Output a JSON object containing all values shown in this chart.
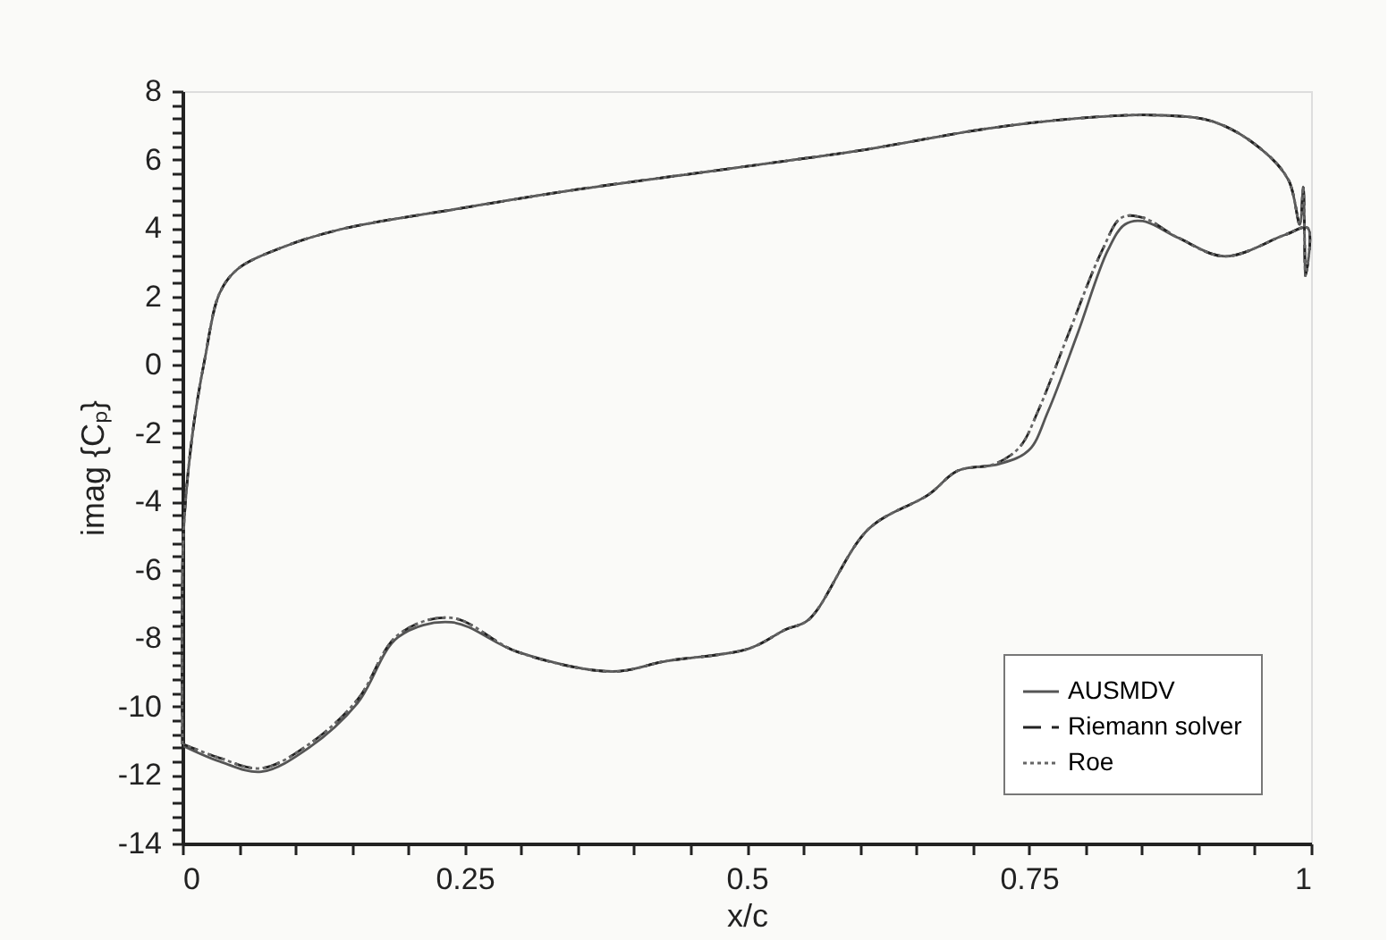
{
  "chart_data": {
    "type": "line",
    "xlabel": "x/c",
    "ylabel": "imag {Cₚ}",
    "xlim": [
      0,
      1
    ],
    "ylim": [
      -14,
      8
    ],
    "xticks": [
      0,
      {
        "value": 0.05,
        "label": null
      },
      {
        "value": 0.1,
        "label": null
      },
      {
        "value": 0.15,
        "label": null
      },
      {
        "value": 0.2,
        "label": null
      },
      0.25,
      {
        "value": 0.3,
        "label": null
      },
      {
        "value": 0.35,
        "label": null
      },
      {
        "value": 0.4,
        "label": null
      },
      {
        "value": 0.45,
        "label": null
      },
      0.5,
      {
        "value": 0.55,
        "label": null
      },
      {
        "value": 0.6,
        "label": null
      },
      {
        "value": 0.65,
        "label": null
      },
      {
        "value": 0.7,
        "label": null
      },
      0.75,
      {
        "value": 0.8,
        "label": null
      },
      {
        "value": 0.85,
        "label": null
      },
      {
        "value": 0.9,
        "label": null
      },
      {
        "value": 0.95,
        "label": null
      },
      1
    ],
    "yticks": [
      -14,
      {
        "value": -13.6,
        "label": null
      },
      {
        "value": -13.2,
        "label": null
      },
      {
        "value": -12.8,
        "label": null
      },
      {
        "value": -12.4,
        "label": null
      },
      -12,
      {
        "value": -11.6,
        "label": null
      },
      {
        "value": -11.2,
        "label": null
      },
      {
        "value": -10.8,
        "label": null
      },
      {
        "value": -10.4,
        "label": null
      },
      -10,
      {
        "value": -9.6,
        "label": null
      },
      {
        "value": -9.2,
        "label": null
      },
      {
        "value": -8.8,
        "label": null
      },
      {
        "value": -8.4,
        "label": null
      },
      -8,
      {
        "value": -7.6,
        "label": null
      },
      {
        "value": -7.2,
        "label": null
      },
      {
        "value": -6.8,
        "label": null
      },
      {
        "value": -6.4,
        "label": null
      },
      -6,
      {
        "value": -5.6,
        "label": null
      },
      {
        "value": -5.2,
        "label": null
      },
      {
        "value": -4.8,
        "label": null
      },
      {
        "value": -4.4,
        "label": null
      },
      -4,
      {
        "value": -3.6,
        "label": null
      },
      {
        "value": -3.2,
        "label": null
      },
      {
        "value": -2.8,
        "label": null
      },
      {
        "value": -2.4,
        "label": null
      },
      -2,
      {
        "value": -1.6,
        "label": null
      },
      {
        "value": -1.2,
        "label": null
      },
      {
        "value": -0.8,
        "label": null
      },
      {
        "value": -0.4,
        "label": null
      },
      0,
      {
        "value": 0.4,
        "label": null
      },
      {
        "value": 0.8,
        "label": null
      },
      {
        "value": 1.2,
        "label": null
      },
      {
        "value": 1.6,
        "label": null
      },
      2,
      {
        "value": 2.4,
        "label": null
      },
      {
        "value": 2.8,
        "label": null
      },
      {
        "value": 3.2,
        "label": null
      },
      {
        "value": 3.6,
        "label": null
      },
      4,
      {
        "value": 4.4,
        "label": null
      },
      {
        "value": 4.8,
        "label": null
      },
      {
        "value": 5.2,
        "label": null
      },
      {
        "value": 5.6,
        "label": null
      },
      6,
      {
        "value": 6.4,
        "label": null
      },
      {
        "value": 6.8,
        "label": null
      },
      {
        "value": 7.2,
        "label": null
      },
      {
        "value": 7.6,
        "label": null
      },
      8
    ],
    "grid": false,
    "legend": "bottom right",
    "marker": "none",
    "series": [
      {
        "name": "AUSMDV",
        "color": "#555555",
        "line_style": "solid",
        "x": [
          0.0,
          0.001,
          0.009,
          0.02,
          0.033,
          0.049,
          0.086,
          0.139,
          0.244,
          0.349,
          0.455,
          0.535,
          0.607,
          0.712,
          0.792,
          0.86,
          0.914,
          0.956,
          0.98,
          0.99,
          0.993,
          0.995,
          0.997,
          0.977,
          0.924,
          0.883,
          0.851,
          0.835,
          0.82,
          0.793,
          0.767,
          0.75,
          0.724,
          0.687,
          0.661,
          0.608,
          0.555,
          0.534,
          0.502,
          0.428,
          0.381,
          0.297,
          0.238,
          0.191,
          0.155,
          0.112,
          0.07,
          0.033,
          0.001
        ],
        "values": [
          -11.1,
          -4.9,
          -2.0,
          0.2,
          2.1,
          2.8,
          3.4,
          3.95,
          4.56,
          5.12,
          5.6,
          5.96,
          6.3,
          6.9,
          7.2,
          7.3,
          7.1,
          6.3,
          5.4,
          4.1,
          5.2,
          2.6,
          4.0,
          3.8,
          3.17,
          3.7,
          4.2,
          4.1,
          3.35,
          0.9,
          -1.36,
          -2.5,
          -2.9,
          -3.1,
          -3.8,
          -4.8,
          -7.45,
          -7.75,
          -8.3,
          -8.67,
          -8.97,
          -8.4,
          -7.53,
          -7.97,
          -9.9,
          -11.2,
          -11.9,
          -11.6,
          -11.15
        ]
      },
      {
        "name": "Riemann solver",
        "color": "#222222",
        "line_style": "dashed",
        "x": [
          0.0,
          0.001,
          0.009,
          0.02,
          0.033,
          0.049,
          0.086,
          0.139,
          0.244,
          0.349,
          0.455,
          0.535,
          0.607,
          0.712,
          0.792,
          0.86,
          0.914,
          0.956,
          0.98,
          0.99,
          0.993,
          0.995,
          0.997,
          0.977,
          0.924,
          0.883,
          0.851,
          0.832,
          0.815,
          0.785,
          0.758,
          0.742,
          0.72,
          0.687,
          0.661,
          0.608,
          0.555,
          0.534,
          0.502,
          0.428,
          0.381,
          0.297,
          0.238,
          0.191,
          0.155,
          0.112,
          0.07,
          0.033,
          0.001
        ],
        "values": [
          -11.1,
          -4.9,
          -2.0,
          0.2,
          2.1,
          2.8,
          3.4,
          3.95,
          4.56,
          5.12,
          5.6,
          5.96,
          6.3,
          6.9,
          7.2,
          7.3,
          7.1,
          6.3,
          5.4,
          4.1,
          5.2,
          2.6,
          4.0,
          3.8,
          3.17,
          3.7,
          4.3,
          4.3,
          3.35,
          0.9,
          -1.36,
          -2.4,
          -2.9,
          -3.1,
          -3.8,
          -4.8,
          -7.45,
          -7.75,
          -8.3,
          -8.67,
          -8.97,
          -8.4,
          -7.4,
          -7.9,
          -9.8,
          -11.1,
          -11.8,
          -11.5,
          -11.1
        ]
      },
      {
        "name": "Roe",
        "color": "#666666",
        "line_style": "dotted",
        "x": [
          0.0,
          0.001,
          0.009,
          0.02,
          0.033,
          0.049,
          0.086,
          0.139,
          0.244,
          0.349,
          0.455,
          0.535,
          0.607,
          0.712,
          0.792,
          0.86,
          0.914,
          0.956,
          0.98,
          0.99,
          0.993,
          0.995,
          0.997,
          0.977,
          0.924,
          0.883,
          0.851,
          0.832,
          0.815,
          0.785,
          0.758,
          0.742,
          0.72,
          0.687,
          0.661,
          0.608,
          0.555,
          0.534,
          0.502,
          0.428,
          0.381,
          0.297,
          0.238,
          0.191,
          0.155,
          0.112,
          0.07,
          0.033,
          0.001
        ],
        "values": [
          -11.1,
          -4.9,
          -2.0,
          0.2,
          2.1,
          2.8,
          3.4,
          3.95,
          4.56,
          5.12,
          5.6,
          5.96,
          6.3,
          6.9,
          7.2,
          7.3,
          7.1,
          6.3,
          5.4,
          4.1,
          5.2,
          2.6,
          4.0,
          3.8,
          3.17,
          3.7,
          4.3,
          4.3,
          3.35,
          0.9,
          -1.36,
          -2.4,
          -2.9,
          -3.1,
          -3.8,
          -4.8,
          -7.45,
          -7.75,
          -8.3,
          -8.67,
          -8.97,
          -8.4,
          -7.4,
          -7.9,
          -9.8,
          -11.1,
          -11.8,
          -11.5,
          -11.1
        ]
      }
    ]
  }
}
